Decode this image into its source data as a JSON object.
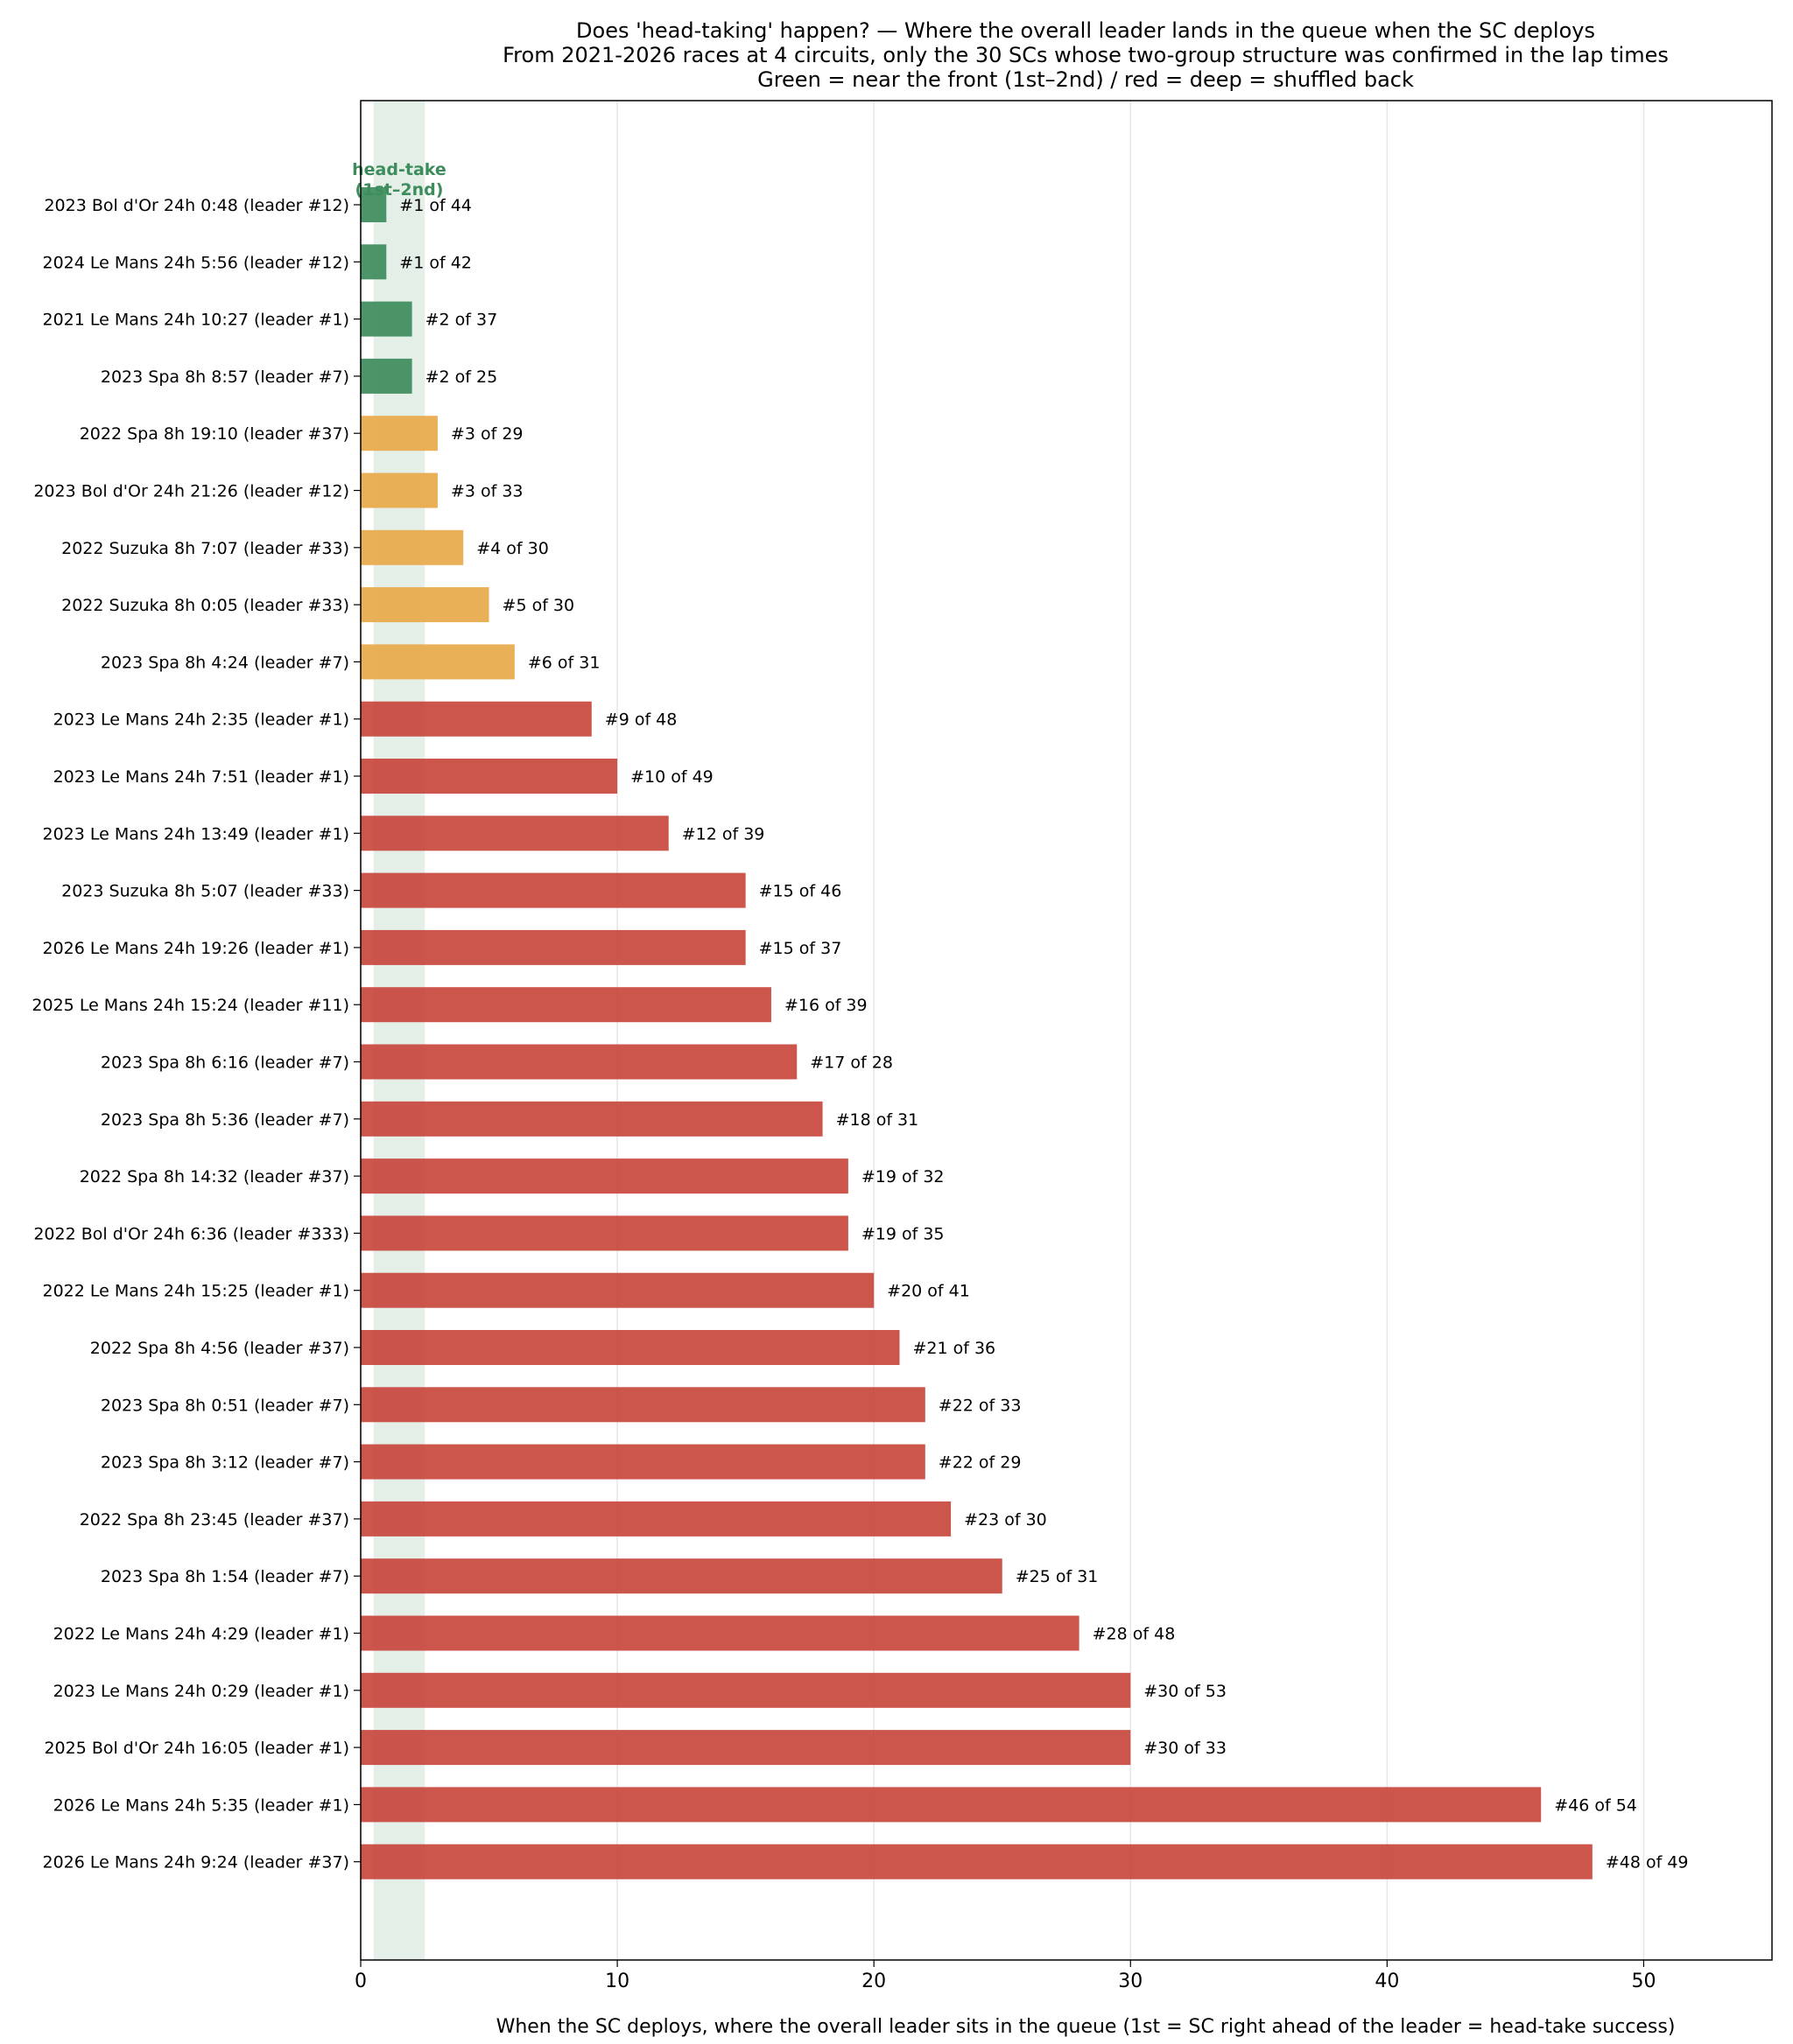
{
  "chart_data": {
    "type": "bar",
    "orientation": "horizontal",
    "title": [
      "Does 'head-taking' happen? — Where the overall leader lands in the queue when the SC deploys",
      "From 2021-2026 races at 4 circuits, only the 30 SCs whose two-group structure was confirmed in the lap times",
      "Green = near the front (1st–2nd) / red = deep = shuffled back"
    ],
    "xlabel": "When the SC deploys, where the overall leader sits in the queue (1st = SC right ahead of the leader = head-take success)",
    "ylabel": "",
    "xlim": [
      0,
      55
    ],
    "xticks": [
      0,
      10,
      20,
      30,
      40,
      50
    ],
    "grid": "x",
    "head_take_band": {
      "range": [
        0.5,
        2.5
      ],
      "label": [
        "head-take",
        "(1st–2nd)"
      ],
      "color": "#3d8c5c"
    },
    "colors": {
      "green": "#3d8c5c",
      "orange": "#e8a94a",
      "red": "#c8473d"
    },
    "categories": [
      "2023 Bol d'Or 24h  0:48 (leader #12)",
      "2024 Le Mans 24h  5:56 (leader #12)",
      "2021 Le Mans 24h  10:27 (leader #1)",
      "2023 Spa 8h  8:57 (leader #7)",
      "2022 Spa 8h  19:10 (leader #37)",
      "2023 Bol d'Or 24h  21:26 (leader #12)",
      "2022 Suzuka 8h  7:07 (leader #33)",
      "2022 Suzuka 8h  0:05 (leader #33)",
      "2023 Spa 8h  4:24 (leader #7)",
      "2023 Le Mans 24h  2:35 (leader #1)",
      "2023 Le Mans 24h  7:51 (leader #1)",
      "2023 Le Mans 24h  13:49 (leader #1)",
      "2023 Suzuka 8h  5:07 (leader #33)",
      "2026 Le Mans 24h  19:26 (leader #1)",
      "2025 Le Mans 24h  15:24 (leader #11)",
      "2023 Spa 8h  6:16 (leader #7)",
      "2023 Spa 8h  5:36 (leader #7)",
      "2022 Spa 8h  14:32 (leader #37)",
      "2022 Bol d'Or 24h  6:36 (leader #333)",
      "2022 Le Mans 24h  15:25 (leader #1)",
      "2022 Spa 8h  4:56 (leader #37)",
      "2023 Spa 8h  0:51 (leader #7)",
      "2023 Spa 8h  3:12 (leader #7)",
      "2022 Spa 8h  23:45 (leader #37)",
      "2023 Spa 8h  1:54 (leader #7)",
      "2022 Le Mans 24h  4:29 (leader #1)",
      "2023 Le Mans 24h  0:29 (leader #1)",
      "2025 Bol d'Or 24h  16:05 (leader #1)",
      "2026 Le Mans 24h  5:35 (leader #1)",
      "2026 Le Mans 24h  9:24 (leader #37)"
    ],
    "values": [
      1,
      1,
      2,
      2,
      3,
      3,
      4,
      5,
      6,
      9,
      10,
      12,
      15,
      15,
      16,
      17,
      18,
      19,
      19,
      20,
      21,
      22,
      22,
      23,
      25,
      28,
      30,
      30,
      46,
      48
    ],
    "bar_labels": [
      "#1 of 44",
      "#1 of 42",
      "#2 of 37",
      "#2 of 25",
      "#3 of 29",
      "#3 of 33",
      "#4 of 30",
      "#5 of 30",
      "#6 of 31",
      "#9 of 48",
      "#10 of 49",
      "#12 of 39",
      "#15 of 46",
      "#15 of 37",
      "#16 of 39",
      "#17 of 28",
      "#18 of 31",
      "#19 of 32",
      "#19 of 35",
      "#20 of 41",
      "#21 of 36",
      "#22 of 33",
      "#22 of 29",
      "#23 of 30",
      "#25 of 31",
      "#28 of 48",
      "#30 of 53",
      "#30 of 33",
      "#46 of 54",
      "#48 of 49"
    ],
    "bar_colors": [
      "green",
      "green",
      "green",
      "green",
      "orange",
      "orange",
      "orange",
      "orange",
      "orange",
      "red",
      "red",
      "red",
      "red",
      "red",
      "red",
      "red",
      "red",
      "red",
      "red",
      "red",
      "red",
      "red",
      "red",
      "red",
      "red",
      "red",
      "red",
      "red",
      "red",
      "red"
    ]
  }
}
